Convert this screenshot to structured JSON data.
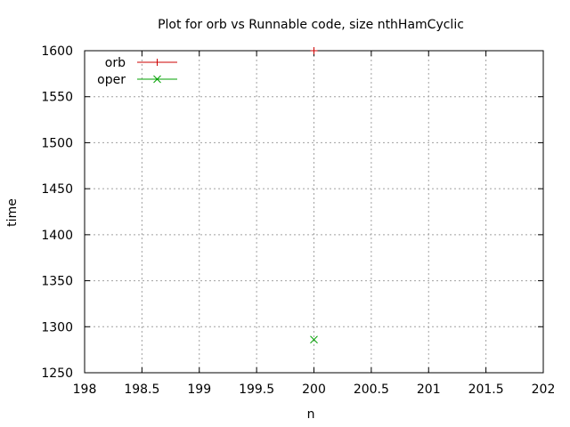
{
  "chart_data": {
    "type": "scatter",
    "title": "Plot for orb vs Runnable code, size nthHamCyclic",
    "xlabel": "n",
    "ylabel": "time",
    "xlim": [
      198,
      202
    ],
    "ylim": [
      1250,
      1600
    ],
    "x_ticks": [
      198,
      198.5,
      199,
      199.5,
      200,
      200.5,
      201,
      201.5,
      202
    ],
    "y_ticks": [
      1250,
      1300,
      1350,
      1400,
      1450,
      1500,
      1550,
      1600
    ],
    "grid": true,
    "legend_position": "top-left",
    "series": [
      {
        "name": "orb",
        "color": "#cc0000",
        "marker": "plus",
        "points": [
          {
            "x": 200,
            "y": 1600
          }
        ]
      },
      {
        "name": "oper",
        "color": "#00a000",
        "marker": "cross",
        "points": [
          {
            "x": 200,
            "y": 1286
          }
        ]
      }
    ]
  }
}
